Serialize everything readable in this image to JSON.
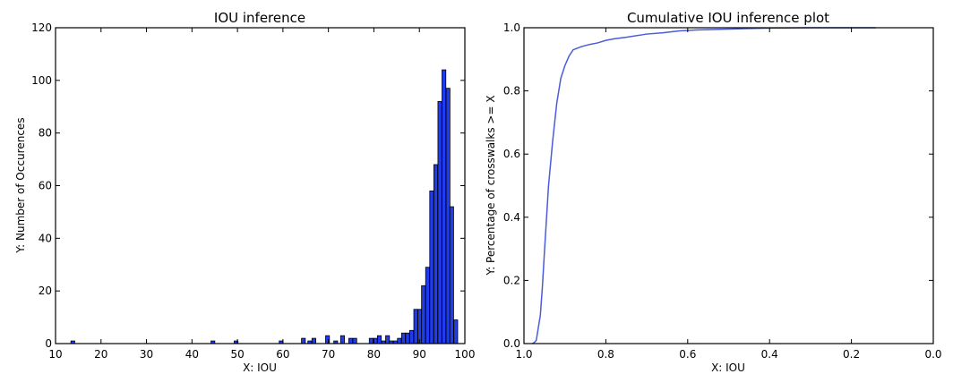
{
  "chart_data": [
    {
      "type": "bar",
      "title": "IOU inference",
      "xlabel": "X: IOU",
      "ylabel": "Y: Number of Occurences",
      "xlim": [
        10,
        100
      ],
      "ylim": [
        0,
        120
      ],
      "xticks": [
        "10",
        "20",
        "30",
        "40",
        "50",
        "60",
        "70",
        "80",
        "90",
        "100"
      ],
      "yticks": [
        "0",
        "20",
        "40",
        "60",
        "80",
        "100",
        "120"
      ],
      "bar_color": "#1f3cf0",
      "bin_width": 0.84,
      "bins": [
        {
          "x": 13.8,
          "y": 1
        },
        {
          "x": 44.6,
          "y": 1
        },
        {
          "x": 49.7,
          "y": 1
        },
        {
          "x": 59.6,
          "y": 1
        },
        {
          "x": 64.5,
          "y": 2
        },
        {
          "x": 65.9,
          "y": 1
        },
        {
          "x": 66.8,
          "y": 2
        },
        {
          "x": 69.8,
          "y": 3
        },
        {
          "x": 71.6,
          "y": 1
        },
        {
          "x": 73.1,
          "y": 3
        },
        {
          "x": 74.9,
          "y": 2
        },
        {
          "x": 75.8,
          "y": 2
        },
        {
          "x": 79.4,
          "y": 2
        },
        {
          "x": 80.3,
          "y": 2
        },
        {
          "x": 81.2,
          "y": 3
        },
        {
          "x": 82.1,
          "y": 1
        },
        {
          "x": 83.0,
          "y": 3
        },
        {
          "x": 83.8,
          "y": 1
        },
        {
          "x": 84.7,
          "y": 1
        },
        {
          "x": 85.6,
          "y": 2
        },
        {
          "x": 86.5,
          "y": 4
        },
        {
          "x": 87.4,
          "y": 4
        },
        {
          "x": 88.3,
          "y": 5
        },
        {
          "x": 89.2,
          "y": 13
        },
        {
          "x": 90.1,
          "y": 13
        },
        {
          "x": 90.9,
          "y": 22
        },
        {
          "x": 91.8,
          "y": 29
        },
        {
          "x": 92.7,
          "y": 58
        },
        {
          "x": 93.6,
          "y": 68
        },
        {
          "x": 94.5,
          "y": 92
        },
        {
          "x": 95.4,
          "y": 104
        },
        {
          "x": 96.3,
          "y": 97
        },
        {
          "x": 97.1,
          "y": 52
        },
        {
          "x": 98.0,
          "y": 9
        }
      ]
    },
    {
      "type": "line",
      "title": "Cumulative IOU inference plot",
      "xlabel": "X: IOU",
      "ylabel": "Y: Percentage of crosswalks >= X",
      "xlim": [
        1.0,
        0.0
      ],
      "ylim": [
        0.0,
        1.0
      ],
      "x_reversed": true,
      "xticks": [
        "1.0",
        "0.8",
        "0.6",
        "0.4",
        "0.2",
        "0.0"
      ],
      "yticks": [
        "0.0",
        "0.2",
        "0.4",
        "0.6",
        "0.8",
        "1.0"
      ],
      "line_color": "#4a5cd8",
      "x": [
        0.98,
        0.975,
        0.97,
        0.96,
        0.955,
        0.95,
        0.94,
        0.93,
        0.92,
        0.91,
        0.9,
        0.89,
        0.88,
        0.87,
        0.86,
        0.84,
        0.82,
        0.8,
        0.78,
        0.75,
        0.7,
        0.66,
        0.62,
        0.58,
        0.52,
        0.46,
        0.4,
        0.3,
        0.2,
        0.14
      ],
      "y": [
        0.0,
        0.003,
        0.01,
        0.09,
        0.18,
        0.29,
        0.5,
        0.64,
        0.76,
        0.84,
        0.88,
        0.91,
        0.93,
        0.935,
        0.94,
        0.947,
        0.952,
        0.96,
        0.965,
        0.97,
        0.98,
        0.984,
        0.99,
        0.993,
        0.995,
        0.997,
        0.999,
        1.0,
        1.0,
        1.0
      ]
    }
  ]
}
